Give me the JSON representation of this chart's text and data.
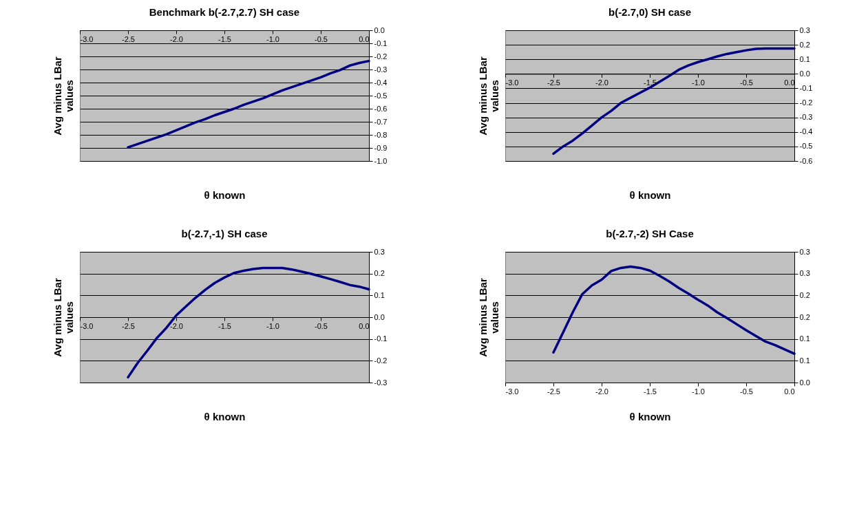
{
  "chart_data": [
    {
      "type": "line",
      "title": "Benchmark b(-2.7,2.7) SH case",
      "xlabel": "θ known",
      "ylabel": "Avg minus LBar values",
      "grid": "y",
      "line_style": "solid",
      "marker": "none",
      "x": [
        -2.5,
        -2.4,
        -2.3,
        -2.2,
        -2.1,
        -2.0,
        -1.9,
        -1.8,
        -1.7,
        -1.6,
        -1.5,
        -1.4,
        -1.3,
        -1.2,
        -1.1,
        -1.0,
        -0.9,
        -0.8,
        -0.7,
        -0.6,
        -0.5,
        -0.4,
        -0.3,
        -0.2,
        -0.1,
        0.0
      ],
      "series": [
        {
          "color": "#000080",
          "values": [
            -0.895,
            -0.87,
            -0.845,
            -0.82,
            -0.795,
            -0.765,
            -0.735,
            -0.705,
            -0.68,
            -0.65,
            -0.625,
            -0.6,
            -0.57,
            -0.545,
            -0.52,
            -0.49,
            -0.46,
            -0.435,
            -0.41,
            -0.385,
            -0.36,
            -0.33,
            -0.305,
            -0.27,
            -0.25,
            -0.235
          ]
        }
      ],
      "xlim": [
        -3.0,
        0.0
      ],
      "xticks": [
        {
          "value": -3,
          "label": "-3.0"
        },
        -2.5,
        {
          "value": -2,
          "label": "-2.0"
        },
        -1.5,
        {
          "value": -1,
          "label": "-1.0"
        },
        -0.5,
        {
          "value": 0,
          "label": "0.0"
        }
      ],
      "ylim": [
        -1.0,
        0.0
      ],
      "yticks": [
        {
          "value": -1,
          "label": "-1.0"
        },
        -0.9,
        -0.8,
        -0.7,
        -0.6,
        -0.5,
        -0.4,
        -0.3,
        -0.2,
        -0.1,
        {
          "value": 0,
          "label": "0.0"
        }
      ]
    },
    {
      "type": "line",
      "title": "b(-2.7,0) SH case",
      "xlabel": "θ known",
      "ylabel": "Avg minus LBar values",
      "grid": "y",
      "line_style": "solid",
      "marker": "none",
      "x": [
        -2.5,
        -2.4,
        -2.3,
        -2.2,
        -2.1,
        -2.0,
        -1.9,
        -1.8,
        -1.7,
        -1.6,
        -1.5,
        -1.4,
        -1.3,
        -1.2,
        -1.1,
        -1.0,
        -0.9,
        -0.8,
        -0.7,
        -0.6,
        -0.5,
        -0.4,
        -0.3,
        -0.2,
        -0.1,
        0.0
      ],
      "series": [
        {
          "color": "#000080",
          "values": [
            -0.55,
            -0.5,
            -0.46,
            -0.41,
            -0.355,
            -0.3,
            -0.255,
            -0.2,
            -0.165,
            -0.13,
            -0.095,
            -0.055,
            -0.015,
            0.028,
            0.058,
            0.081,
            0.1,
            0.12,
            0.137,
            0.15,
            0.162,
            0.172,
            0.175,
            0.175,
            0.175,
            0.175
          ]
        }
      ],
      "xlim": [
        -3.0,
        0.0
      ],
      "xticks": [
        {
          "value": -3,
          "label": "-3.0"
        },
        -2.5,
        {
          "value": -2,
          "label": "-2.0"
        },
        -1.5,
        {
          "value": -1,
          "label": "-1.0"
        },
        -0.5,
        {
          "value": 0,
          "label": "0.0"
        }
      ],
      "ylim": [
        -0.6,
        0.3
      ],
      "yticks": [
        -0.6,
        -0.5,
        -0.4,
        -0.3,
        -0.2,
        -0.1,
        {
          "value": 0,
          "label": "0.0"
        },
        0.1,
        0.2,
        0.3
      ]
    },
    {
      "type": "line",
      "title": "b(-2.7,-1) SH case",
      "xlabel": "θ known",
      "ylabel": "Avg minus LBar values",
      "grid": "y",
      "line_style": "solid",
      "marker": "none",
      "x": [
        -2.5,
        -2.4,
        -2.3,
        -2.2,
        -2.1,
        -2.0,
        -1.9,
        -1.8,
        -1.7,
        -1.6,
        -1.5,
        -1.4,
        -1.3,
        -1.2,
        -1.1,
        -1.0,
        -0.9,
        -0.8,
        -0.7,
        -0.6,
        -0.5,
        -0.4,
        -0.3,
        -0.2,
        -0.1,
        0.0
      ],
      "series": [
        {
          "color": "#000080",
          "values": [
            -0.276,
            -0.21,
            -0.154,
            -0.095,
            -0.048,
            0.008,
            0.049,
            0.089,
            0.125,
            0.157,
            0.182,
            0.203,
            0.213,
            0.221,
            0.226,
            0.226,
            0.226,
            0.219,
            0.209,
            0.199,
            0.187,
            0.175,
            0.162,
            0.148,
            0.14,
            0.128
          ]
        }
      ],
      "xlim": [
        -3.0,
        0.0
      ],
      "xticks": [
        {
          "value": -3,
          "label": "-3.0"
        },
        -2.5,
        {
          "value": -2,
          "label": "-2.0"
        },
        -1.5,
        {
          "value": -1,
          "label": "-1.0"
        },
        -0.5,
        {
          "value": 0,
          "label": "0.0"
        }
      ],
      "ylim": [
        -0.3,
        0.3
      ],
      "yticks": [
        -0.3,
        -0.2,
        -0.1,
        {
          "value": 0,
          "label": "0.0"
        },
        0.1,
        0.2,
        0.3
      ]
    },
    {
      "type": "line",
      "title": "b(-2.7,-2) SH Case",
      "xlabel": "θ known",
      "ylabel": "Avg minus LBar values",
      "grid": "y",
      "line_style": "solid",
      "marker": "none",
      "x": [
        -2.5,
        -2.4,
        -2.3,
        -2.2,
        -2.1,
        -2.0,
        -1.9,
        -1.8,
        -1.7,
        -1.6,
        -1.5,
        -1.4,
        -1.3,
        -1.2,
        -1.1,
        -1.0,
        -0.9,
        -0.8,
        -0.7,
        -0.6,
        -0.5,
        -0.4,
        -0.3,
        -0.2,
        -0.1,
        0.0
      ],
      "series": [
        {
          "color": "#000080",
          "values": [
            0.069,
            0.115,
            0.161,
            0.203,
            0.223,
            0.236,
            0.256,
            0.263,
            0.266,
            0.263,
            0.257,
            0.245,
            0.232,
            0.217,
            0.204,
            0.19,
            0.177,
            0.161,
            0.148,
            0.134,
            0.12,
            0.107,
            0.094,
            0.086,
            0.076,
            0.066
          ]
        }
      ],
      "xlim": [
        -3.0,
        0.0
      ],
      "xticks": [
        {
          "value": -3,
          "label": "-3.0"
        },
        -2.5,
        {
          "value": -2,
          "label": "-2.0"
        },
        -1.5,
        {
          "value": -1,
          "label": "-1.0"
        },
        -0.5,
        {
          "value": 0,
          "label": "0.0"
        }
      ],
      "ylim": [
        0.0,
        0.3
      ],
      "yticks": [
        {
          "value": 0.0,
          "label": "0.0"
        },
        {
          "value": 0.05,
          "label": "0.1"
        },
        {
          "value": 0.1,
          "label": "0.1"
        },
        {
          "value": 0.15,
          "label": "0.2"
        },
        {
          "value": 0.2,
          "label": "0.2"
        },
        {
          "value": 0.25,
          "label": "0.3"
        },
        {
          "value": 0.3,
          "label": "0.3"
        }
      ]
    }
  ]
}
